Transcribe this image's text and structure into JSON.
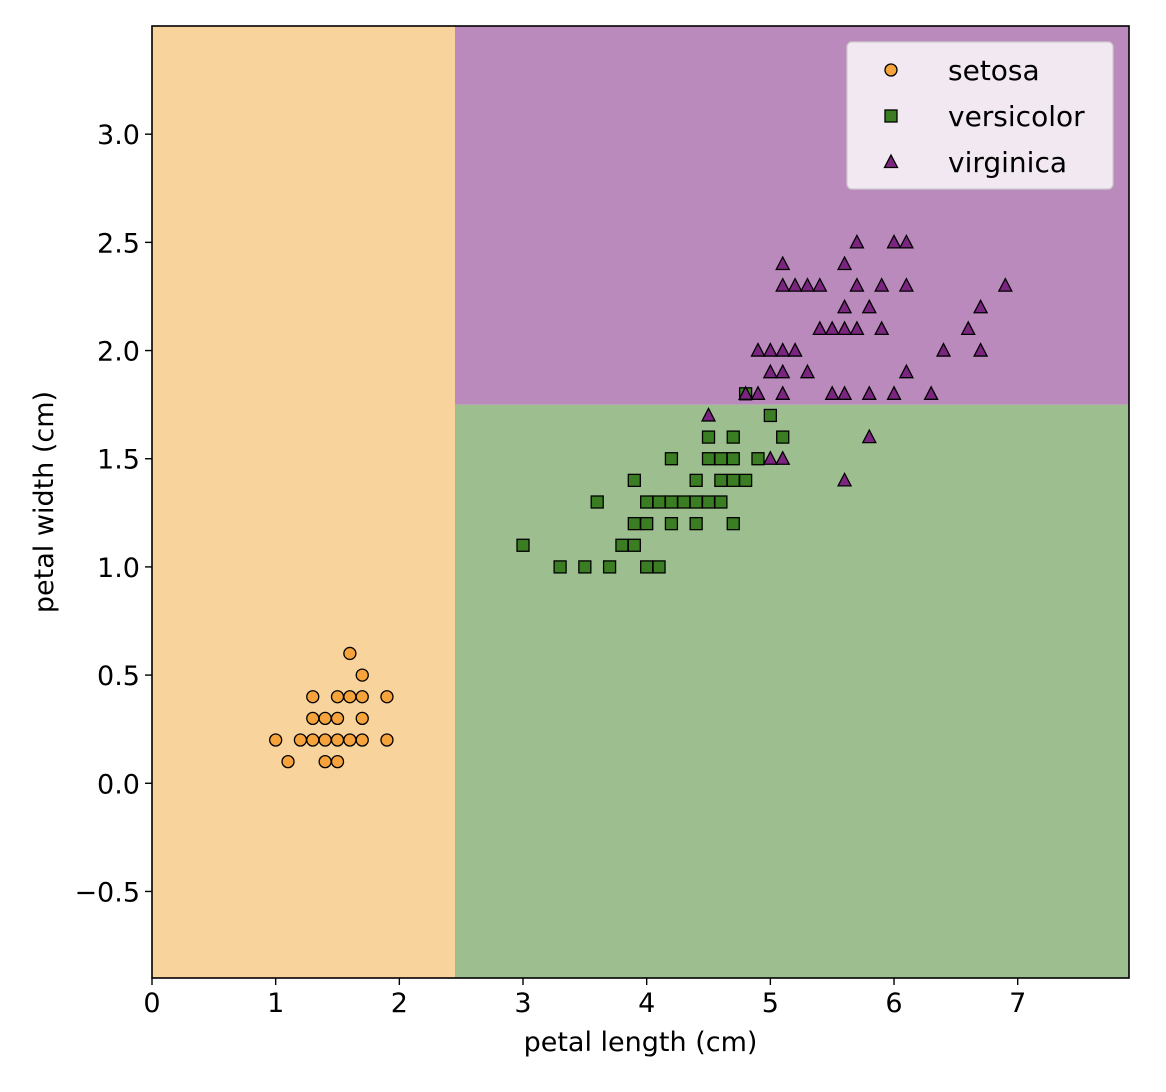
{
  "chart_data": {
    "type": "scatter",
    "xlabel": "petal length (cm)",
    "ylabel": "petal width (cm)",
    "xlim": [
      0,
      7.9
    ],
    "ylim": [
      -0.9,
      3.5
    ],
    "xticks": [
      0,
      1,
      2,
      3,
      4,
      5,
      6,
      7
    ],
    "yticks": [
      -0.5,
      0.0,
      0.5,
      1.0,
      1.5,
      2.0,
      2.5,
      3.0
    ],
    "ytick_labels": [
      "−0.5",
      "0.0",
      "0.5",
      "1.0",
      "1.5",
      "2.0",
      "2.5",
      "3.0"
    ],
    "grid": false,
    "legend_position": "top-right",
    "decision_regions": [
      {
        "class": "setosa",
        "x": [
          0,
          2.45
        ],
        "y": [
          -0.9,
          3.5
        ],
        "color": "#f8d39c"
      },
      {
        "class": "versicolor",
        "x": [
          2.45,
          7.9
        ],
        "y": [
          -0.9,
          1.75
        ],
        "color": "#9dbf8f"
      },
      {
        "class": "virginica",
        "x": [
          2.45,
          7.9
        ],
        "y": [
          1.75,
          3.5
        ],
        "color": "#bb8abc"
      }
    ],
    "series": [
      {
        "name": "setosa",
        "marker": "circle",
        "color": "#f5a33a",
        "points": [
          [
            1.0,
            0.2
          ],
          [
            1.1,
            0.1
          ],
          [
            1.2,
            0.2
          ],
          [
            1.3,
            0.2
          ],
          [
            1.3,
            0.3
          ],
          [
            1.3,
            0.4
          ],
          [
            1.4,
            0.1
          ],
          [
            1.4,
            0.2
          ],
          [
            1.4,
            0.3
          ],
          [
            1.5,
            0.1
          ],
          [
            1.5,
            0.2
          ],
          [
            1.5,
            0.3
          ],
          [
            1.5,
            0.4
          ],
          [
            1.6,
            0.2
          ],
          [
            1.6,
            0.4
          ],
          [
            1.6,
            0.6
          ],
          [
            1.7,
            0.2
          ],
          [
            1.7,
            0.3
          ],
          [
            1.7,
            0.4
          ],
          [
            1.7,
            0.5
          ],
          [
            1.9,
            0.2
          ],
          [
            1.9,
            0.4
          ]
        ]
      },
      {
        "name": "versicolor",
        "marker": "square",
        "color": "#3a7d22",
        "points": [
          [
            3.0,
            1.1
          ],
          [
            3.3,
            1.0
          ],
          [
            3.5,
            1.0
          ],
          [
            3.6,
            1.3
          ],
          [
            3.7,
            1.0
          ],
          [
            3.8,
            1.1
          ],
          [
            3.9,
            1.1
          ],
          [
            3.9,
            1.2
          ],
          [
            3.9,
            1.4
          ],
          [
            4.0,
            1.0
          ],
          [
            4.0,
            1.2
          ],
          [
            4.0,
            1.3
          ],
          [
            4.1,
            1.0
          ],
          [
            4.1,
            1.3
          ],
          [
            4.2,
            1.2
          ],
          [
            4.2,
            1.3
          ],
          [
            4.2,
            1.5
          ],
          [
            4.3,
            1.3
          ],
          [
            4.4,
            1.2
          ],
          [
            4.4,
            1.3
          ],
          [
            4.4,
            1.4
          ],
          [
            4.5,
            1.3
          ],
          [
            4.5,
            1.5
          ],
          [
            4.5,
            1.6
          ],
          [
            4.6,
            1.3
          ],
          [
            4.6,
            1.4
          ],
          [
            4.6,
            1.5
          ],
          [
            4.7,
            1.2
          ],
          [
            4.7,
            1.4
          ],
          [
            4.7,
            1.5
          ],
          [
            4.7,
            1.6
          ],
          [
            4.8,
            1.4
          ],
          [
            4.8,
            1.8
          ],
          [
            4.9,
            1.5
          ],
          [
            5.0,
            1.7
          ],
          [
            5.1,
            1.6
          ]
        ]
      },
      {
        "name": "virginica",
        "marker": "triangle",
        "color": "#7b2580",
        "points": [
          [
            4.5,
            1.7
          ],
          [
            4.8,
            1.8
          ],
          [
            4.9,
            1.8
          ],
          [
            4.9,
            2.0
          ],
          [
            5.0,
            1.5
          ],
          [
            5.0,
            1.9
          ],
          [
            5.0,
            2.0
          ],
          [
            5.1,
            1.5
          ],
          [
            5.1,
            1.8
          ],
          [
            5.1,
            1.9
          ],
          [
            5.1,
            2.0
          ],
          [
            5.1,
            2.3
          ],
          [
            5.1,
            2.4
          ],
          [
            5.2,
            2.0
          ],
          [
            5.2,
            2.3
          ],
          [
            5.3,
            1.9
          ],
          [
            5.3,
            2.3
          ],
          [
            5.4,
            2.1
          ],
          [
            5.4,
            2.3
          ],
          [
            5.5,
            1.8
          ],
          [
            5.5,
            2.1
          ],
          [
            5.6,
            1.4
          ],
          [
            5.6,
            1.8
          ],
          [
            5.6,
            2.1
          ],
          [
            5.6,
            2.2
          ],
          [
            5.6,
            2.4
          ],
          [
            5.7,
            2.1
          ],
          [
            5.7,
            2.3
          ],
          [
            5.7,
            2.5
          ],
          [
            5.8,
            1.6
          ],
          [
            5.8,
            1.8
          ],
          [
            5.8,
            2.2
          ],
          [
            5.9,
            2.1
          ],
          [
            5.9,
            2.3
          ],
          [
            6.0,
            1.8
          ],
          [
            6.0,
            2.5
          ],
          [
            6.1,
            1.9
          ],
          [
            6.1,
            2.3
          ],
          [
            6.1,
            2.5
          ],
          [
            6.3,
            1.8
          ],
          [
            6.4,
            2.0
          ],
          [
            6.6,
            2.1
          ],
          [
            6.7,
            2.0
          ],
          [
            6.7,
            2.2
          ],
          [
            6.9,
            2.3
          ]
        ]
      }
    ]
  }
}
